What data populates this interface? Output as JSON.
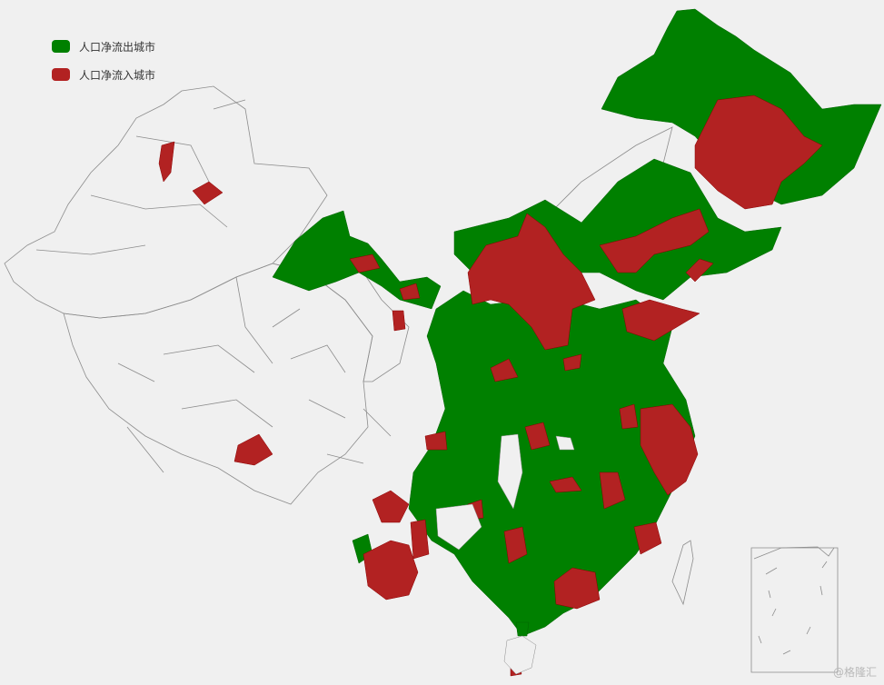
{
  "legend": {
    "items": [
      {
        "label": "人口净流出城市",
        "color": "#008000"
      },
      {
        "label": "人口净流入城市",
        "color": "#b22222"
      }
    ]
  },
  "colors": {
    "background": "#f0f0f0",
    "outflow": "#008000",
    "inflow": "#b22222",
    "no_data": "#f0f0f0",
    "border": "#8c8c8c"
  },
  "watermark": "@格隆汇"
}
